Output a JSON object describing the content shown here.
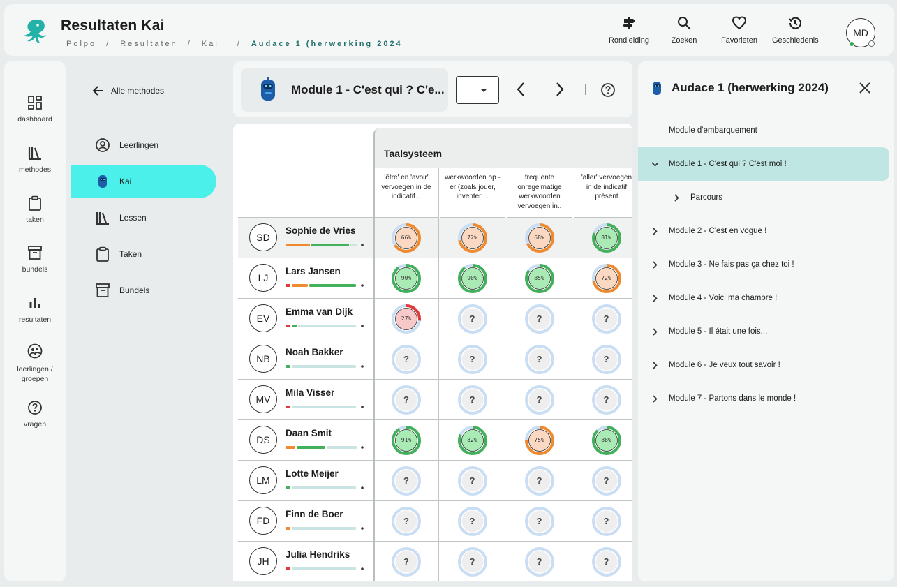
{
  "header": {
    "title": "Resultaten Kai",
    "breadcrumb": [
      "Polpo",
      "Resultaten",
      "Kai",
      "Audace 1 (herwerking 2024"
    ],
    "toolbar": [
      {
        "label": "Rondleiding",
        "icon": "signpost-icon"
      },
      {
        "label": "Zoeken",
        "icon": "search-icon"
      },
      {
        "label": "Favorieten",
        "icon": "heart-icon"
      },
      {
        "label": "Geschiedenis",
        "icon": "history-icon"
      }
    ],
    "avatar_initials": "MD"
  },
  "rail": [
    {
      "label": "dashboard",
      "icon": "dashboard-icon"
    },
    {
      "label": "methodes",
      "icon": "books-icon"
    },
    {
      "label": "taken",
      "icon": "clipboard-icon"
    },
    {
      "label": "bundels",
      "icon": "archive-icon"
    },
    {
      "label": "resultaten",
      "icon": "bar-chart-icon"
    },
    {
      "label": "leerlingen / groepen",
      "icon": "students-icon"
    },
    {
      "label": "vragen",
      "icon": "help-icon"
    }
  ],
  "methods": {
    "back_label": "Alle methodes",
    "items": [
      {
        "label": "Leerlingen",
        "icon": "user-circle-icon",
        "active": false
      },
      {
        "label": "Kai",
        "icon": "robot-icon",
        "active": true
      },
      {
        "label": "Lessen",
        "icon": "books-icon",
        "active": false
      },
      {
        "label": "Taken",
        "icon": "clipboard-icon",
        "active": false
      },
      {
        "label": "Bundels",
        "icon": "archive-icon",
        "active": false
      }
    ]
  },
  "topbar": {
    "module_title": "Module 1 - C'est qui ? C'e...",
    "select_value": ""
  },
  "grid": {
    "group_title": "Taalsysteem",
    "columns": [
      "'être' en 'avoir' vervoegen in de indicatif...",
      "werkwoorden op -er (zoals jouer, inventer,...",
      "frequente onregelmatige werkwoorden vervoegen in..",
      "'aller' vervoegen in de indicatif présent"
    ],
    "students": [
      {
        "initials": "SD",
        "name": "Sophie de Vries",
        "bar": [
          [
            "#f08a2e",
            0.33
          ],
          [
            "#43b05c",
            0.5
          ],
          [
            "#c9e4e2",
            0.1
          ]
        ],
        "scores": [
          66,
          72,
          68,
          81
        ]
      },
      {
        "initials": "LJ",
        "name": "Lars Jansen",
        "bar": [
          [
            "#e03a3a",
            0.08
          ],
          [
            "#f08a2e",
            0.22
          ],
          [
            "#43b05c",
            0.62
          ]
        ],
        "scores": [
          90,
          90,
          85,
          72
        ]
      },
      {
        "initials": "EV",
        "name": "Emma van Dijk",
        "bar": [
          [
            "#e03a3a",
            0.08
          ],
          [
            "#43b05c",
            0.08
          ],
          [
            "#c9e4e2",
            0.76
          ]
        ],
        "scores": [
          27,
          null,
          null,
          null
        ]
      },
      {
        "initials": "NB",
        "name": "Noah Bakker",
        "bar": [
          [
            "#43b05c",
            0.08
          ],
          [
            "#c9e4e2",
            0.84
          ]
        ],
        "scores": [
          null,
          null,
          null,
          null
        ]
      },
      {
        "initials": "MV",
        "name": "Mila Visser",
        "bar": [
          [
            "#e03a3a",
            0.08
          ],
          [
            "#c9e4e2",
            0.84
          ]
        ],
        "scores": [
          null,
          null,
          null,
          null
        ]
      },
      {
        "initials": "DS",
        "name": "Daan Smit",
        "bar": [
          [
            "#f08a2e",
            0.14
          ],
          [
            "#43b05c",
            0.38
          ],
          [
            "#c9e4e2",
            0.4
          ]
        ],
        "scores": [
          91,
          82,
          75,
          88
        ]
      },
      {
        "initials": "LM",
        "name": "Lotte Meijer",
        "bar": [
          [
            "#43b05c",
            0.08
          ],
          [
            "#c9e4e2",
            0.84
          ]
        ],
        "scores": [
          null,
          null,
          null,
          null
        ]
      },
      {
        "initials": "FD",
        "name": "Finn de Boer",
        "bar": [
          [
            "#f08a2e",
            0.08
          ],
          [
            "#c9e4e2",
            0.84
          ]
        ],
        "scores": [
          null,
          null,
          null,
          null
        ]
      },
      {
        "initials": "JH",
        "name": "Julia Hendriks",
        "bar": [
          [
            "#e03a3a",
            0.08
          ],
          [
            "#c9e4e2",
            0.84
          ]
        ],
        "scores": [
          null,
          null,
          null,
          null
        ]
      }
    ],
    "unknown_symbol": "?"
  },
  "colors": {
    "high": "#43b05c",
    "high_fill": "#a9eab5",
    "mid": "#f08a2e",
    "mid_fill": "#fbd8c1",
    "low": "#e03a3a",
    "low_fill": "#f8c9c9",
    "empty_ring": "#c9ddf3",
    "empty_fill": "#eeeeee"
  },
  "rpanel": {
    "title": "Audace 1 (herwerking 2024)",
    "items": [
      {
        "label": "Module d'embarquement",
        "chevron": "none"
      },
      {
        "label": "Module 1 - C'est qui ? C'est moi !",
        "chevron": "down",
        "selected": true
      },
      {
        "label": "Parcours",
        "chevron": "right",
        "sub": true
      },
      {
        "label": "Module 2 - C'est en vogue !",
        "chevron": "right"
      },
      {
        "label": "Module 3 - Ne fais pas ça chez toi !",
        "chevron": "right"
      },
      {
        "label": "Module 4 - Voici ma chambre !",
        "chevron": "right"
      },
      {
        "label": "Module 5 - Il était une fois...",
        "chevron": "right"
      },
      {
        "label": "Module 6 - Je veux tout savoir !",
        "chevron": "right"
      },
      {
        "label": "Module 7 - Partons dans le monde !",
        "chevron": "right"
      }
    ]
  }
}
